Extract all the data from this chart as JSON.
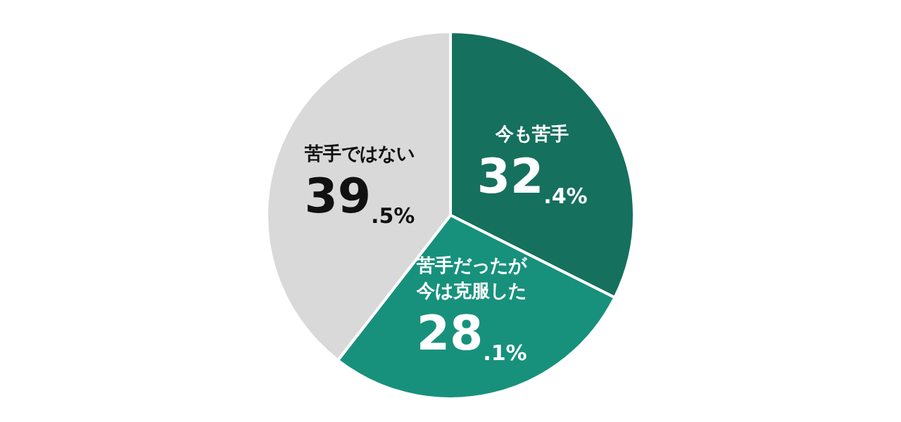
{
  "chart_data": {
    "type": "pie",
    "categories": [
      "今も苦手",
      "苦手だったが今は克服した",
      "苦手ではない"
    ],
    "values": [
      32.4,
      28.1,
      39.5
    ],
    "value_labels": [
      "32.4%",
      "28.1%",
      "39.5%"
    ],
    "colors": [
      "#15705e",
      "#17917c",
      "#d9d9d9"
    ],
    "legend": false
  }
}
